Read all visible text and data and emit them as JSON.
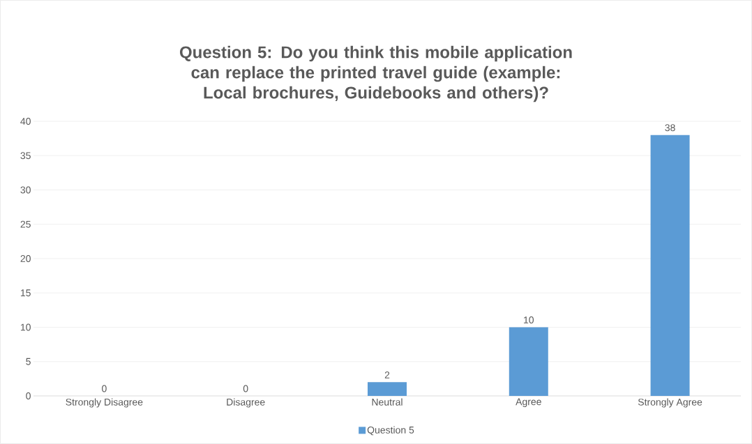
{
  "chart_data": {
    "type": "bar",
    "title": "Question 5: Do you think this mobile application can replace the printed travel guide (example: Local brochures, Guidebooks and others)?",
    "categories": [
      "Strongly Disagree",
      "Disagree",
      "Neutral",
      "Agree",
      "Strongly Agree"
    ],
    "series": [
      {
        "name": "Question 5",
        "color": "#5b9bd5",
        "values": [
          0,
          0,
          2,
          10,
          38
        ]
      }
    ],
    "ylim": [
      0,
      40
    ],
    "yticks": [
      0,
      5,
      10,
      15,
      20,
      25,
      30,
      35,
      40
    ],
    "grid": "y",
    "legend": "bottom",
    "data_labels": true
  }
}
